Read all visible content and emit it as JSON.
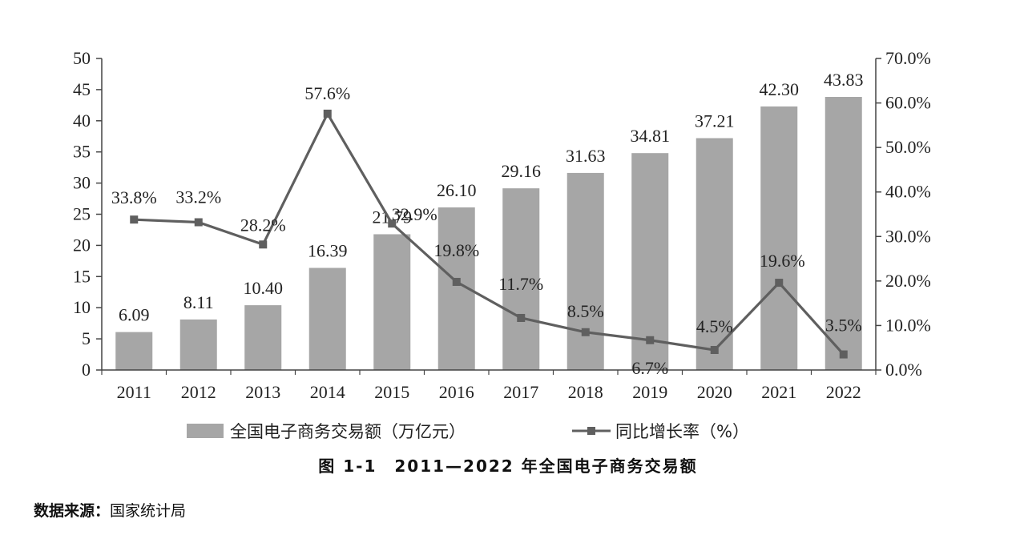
{
  "chart_data": {
    "type": "bar",
    "categories": [
      "2011",
      "2012",
      "2013",
      "2014",
      "2015",
      "2016",
      "2017",
      "2018",
      "2019",
      "2020",
      "2021",
      "2022"
    ],
    "series": [
      {
        "name": "全国电子商务交易额（万亿元）",
        "type": "bar",
        "axis": "left",
        "values": [
          6.09,
          8.11,
          10.4,
          16.39,
          21.79,
          26.1,
          29.16,
          31.63,
          34.81,
          37.21,
          42.3,
          43.83
        ],
        "labels": [
          "6.09",
          "8.11",
          "10.40",
          "16.39",
          "21.79",
          "26.10",
          "29.16",
          "31.63",
          "34.81",
          "37.21",
          "42.30",
          "43.83"
        ],
        "color": "#a6a6a6"
      },
      {
        "name": "同比增长率（%）",
        "type": "line",
        "axis": "right",
        "values": [
          33.8,
          33.2,
          28.2,
          57.6,
          32.9,
          19.8,
          11.7,
          8.5,
          6.7,
          4.5,
          19.6,
          3.5
        ],
        "labels": [
          "33.8%",
          "33.2%",
          "28.2%",
          "57.6%",
          "32.9%",
          "19.8%",
          "11.7%",
          "8.5%",
          "6.7%",
          "4.5%",
          "19.6%",
          "3.5%"
        ],
        "color": "#5f5f5f"
      }
    ],
    "y_left": {
      "min": 0,
      "max": 50,
      "ticks": [
        "0",
        "5",
        "10",
        "15",
        "20",
        "25",
        "30",
        "35",
        "40",
        "45",
        "50"
      ]
    },
    "y_right": {
      "min": 0,
      "max": 70,
      "ticks": [
        "0.0%",
        "10.0%",
        "20.0%",
        "30.0%",
        "40.0%",
        "50.0%",
        "60.0%",
        "70.0%"
      ]
    },
    "grid": false,
    "legend_position": "bottom",
    "title": "图 1-1　2011—2022 年全国电子商务交易额"
  },
  "source": {
    "label": "数据来源：",
    "text": "国家统计局"
  }
}
